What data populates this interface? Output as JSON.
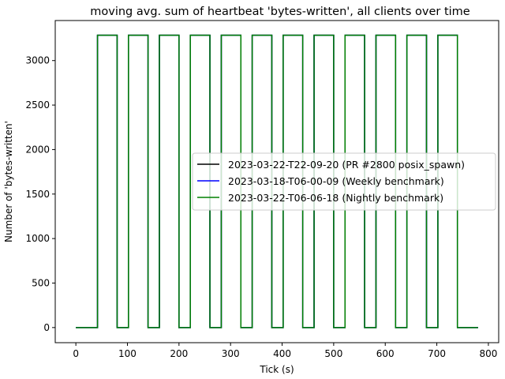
{
  "chart_data": {
    "type": "line",
    "title": "moving avg. sum of heartbeat 'bytes-written', all clients over time",
    "xlabel": "Tick (s)",
    "ylabel": "Number of 'bytes-written'",
    "xlim": [
      -40,
      820
    ],
    "ylim": [
      -170,
      3450
    ],
    "xticks": [
      0,
      100,
      200,
      300,
      400,
      500,
      600,
      700,
      800
    ],
    "yticks": [
      0,
      500,
      1000,
      1500,
      2000,
      2500,
      3000
    ],
    "grid": false,
    "legend_position": "center-right",
    "pulse_level": 3285,
    "baseline_level": 0,
    "x_start": 0,
    "x_end": 780,
    "pulse_intervals": [
      [
        42,
        80
      ],
      [
        102,
        140
      ],
      [
        162,
        200
      ],
      [
        222,
        260
      ],
      [
        282,
        320
      ],
      [
        342,
        380
      ],
      [
        402,
        440
      ],
      [
        462,
        500
      ],
      [
        522,
        560
      ],
      [
        582,
        620
      ],
      [
        642,
        680
      ],
      [
        702,
        740
      ]
    ],
    "series": [
      {
        "name": "2023-03-22-T22-09-20 (PR #2800 posix_spawn)",
        "color": "#000000"
      },
      {
        "name": "2023-03-18-T06-00-09 (Weekly benchmark)",
        "color": "#0000ff"
      },
      {
        "name": "2023-03-22-T06-06-18 (Nightly benchmark)",
        "color": "#008000"
      }
    ]
  }
}
